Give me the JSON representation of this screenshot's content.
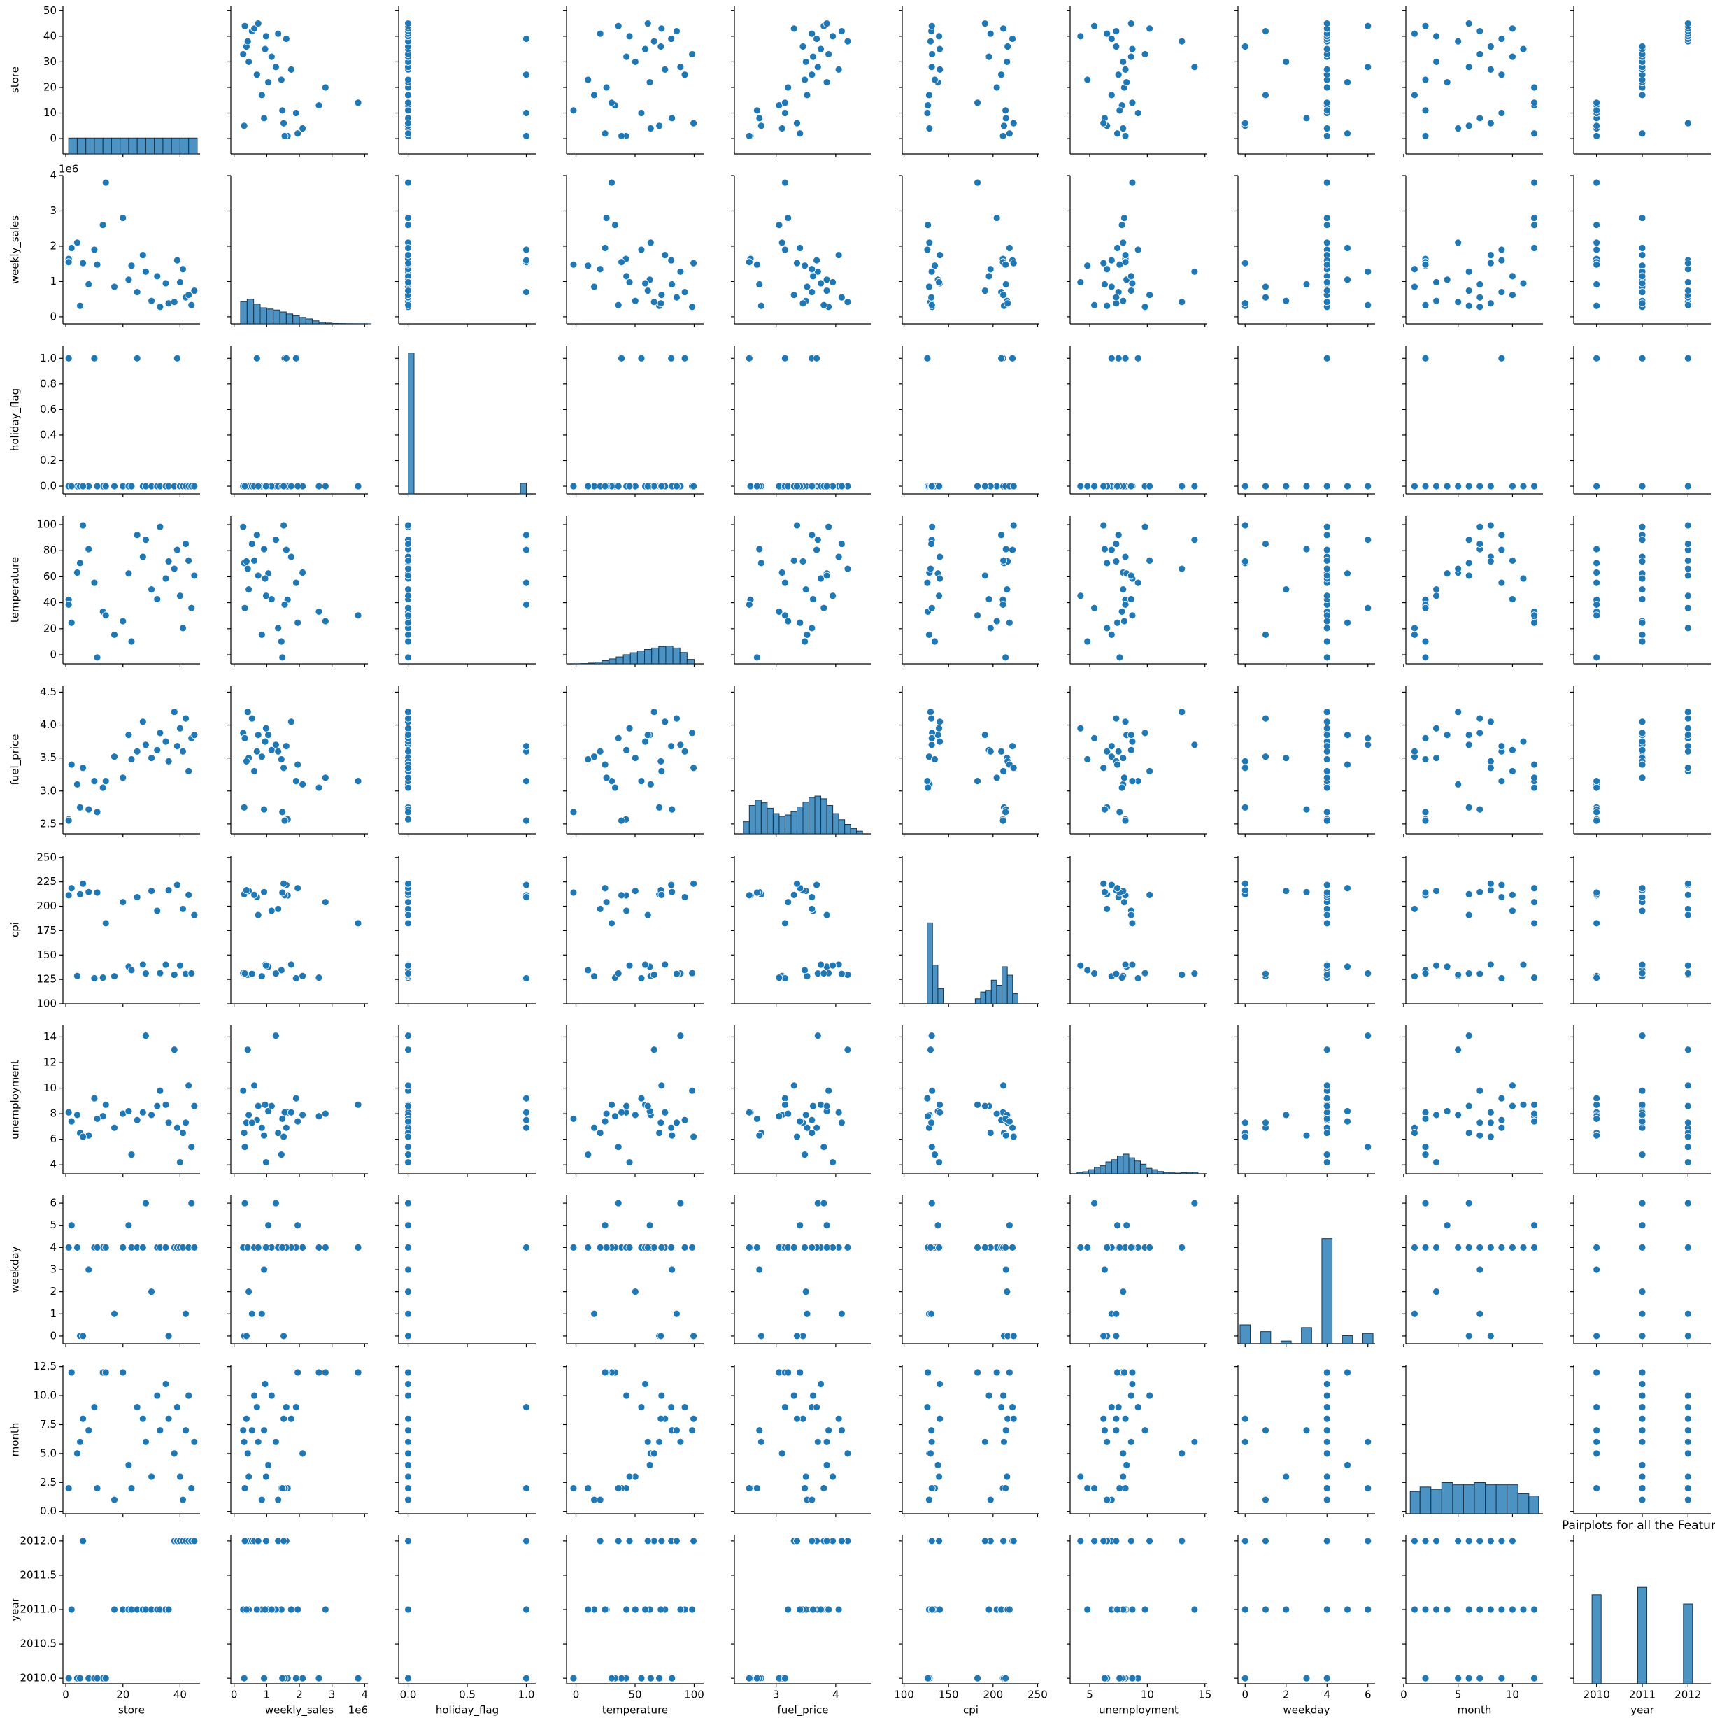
{
  "chart_data": {
    "type": "pairplot",
    "title": "Pairplots for all the Feature",
    "color": "#1f77b4",
    "variables": [
      {
        "name": "store",
        "xlim": [
          -1,
          47
        ],
        "xticks": [
          0,
          20,
          40
        ],
        "ylim": [
          -6,
          52
        ],
        "yticks": [
          0,
          10,
          20,
          30,
          40,
          50
        ],
        "hist": {
          "bins": [
            1,
            4,
            7,
            10,
            13,
            16,
            19,
            22,
            25,
            28,
            31,
            34,
            37,
            40,
            43,
            46
          ],
          "counts": [
            429,
            429,
            429,
            429,
            429,
            429,
            429,
            429,
            429,
            429,
            429,
            429,
            429,
            429,
            429
          ],
          "ylim": [
            0,
            4000
          ]
        }
      },
      {
        "name": "weekly_sales",
        "offset_label": "1e6",
        "xlim": [
          -0.1,
          4.1
        ],
        "xticks": [
          0,
          1,
          2,
          3,
          4
        ],
        "ylim": [
          -0.2,
          4.0
        ],
        "yticks": [
          0,
          1,
          2,
          3,
          4
        ],
        "hist": {
          "bins": [
            0.2,
            0.4,
            0.6,
            0.8,
            1.0,
            1.2,
            1.4,
            1.6,
            1.8,
            2.0,
            2.2,
            2.4,
            2.6,
            2.8,
            3.0,
            3.2,
            3.4,
            3.6,
            3.8,
            4.0,
            4.2
          ],
          "counts": [
            900,
            1000,
            800,
            650,
            600,
            560,
            480,
            400,
            330,
            260,
            200,
            120,
            60,
            30,
            15,
            10,
            6,
            4,
            3,
            2
          ],
          "ylim": [
            0,
            6000
          ]
        }
      },
      {
        "name": "holiday_flag",
        "xlim": [
          -0.08,
          1.08
        ],
        "xticks": [
          {
            "value": 0,
            "label": "0.0"
          },
          0.5,
          {
            "value": 1,
            "label": "1.0"
          }
        ],
        "ylim": [
          -0.06,
          1.1
        ],
        "yticks": [
          {
            "value": 0,
            "label": "0.0"
          },
          0.2,
          0.4,
          0.6,
          0.8,
          {
            "value": 1,
            "label": "1.0"
          }
        ],
        "hist": {
          "bins": [
            0,
            0.05,
            0.1,
            0.15,
            0.2,
            0.25,
            0.3,
            0.35,
            0.4,
            0.45,
            0.5,
            0.55,
            0.6,
            0.65,
            0.7,
            0.75,
            0.8,
            0.85,
            0.9,
            0.95,
            1.0
          ],
          "counts": [
            5985,
            0,
            0,
            0,
            0,
            0,
            0,
            0,
            0,
            0,
            0,
            0,
            0,
            0,
            0,
            0,
            0,
            0,
            0,
            450
          ],
          "ylim": [
            0,
            6300
          ]
        }
      },
      {
        "name": "temperature",
        "xlim": [
          -8,
          108
        ],
        "xticks": [
          0,
          50,
          100
        ],
        "ylim": [
          -7,
          107
        ],
        "yticks": [
          0,
          20,
          40,
          60,
          80,
          100
        ],
        "hist": {
          "bins": [
            -2,
            4,
            10,
            16,
            22,
            28,
            34,
            40,
            46,
            52,
            58,
            64,
            70,
            76,
            82,
            88,
            94,
            100
          ],
          "counts": [
            5,
            12,
            30,
            70,
            130,
            200,
            280,
            370,
            450,
            520,
            580,
            640,
            700,
            720,
            640,
            460,
            180
          ],
          "ylim": [
            0,
            6000
          ]
        }
      },
      {
        "name": "fuel_price",
        "xlim": [
          2.3,
          4.6
        ],
        "xticks": [
          3,
          4
        ],
        "ylim": [
          2.35,
          4.6
        ],
        "yticks": [
          2.5,
          {
            "value": 3,
            "label": "3.0"
          },
          3.5,
          {
            "value": 4,
            "label": "4.0"
          },
          4.5
        ],
        "hist": {
          "bins": [
            2.45,
            2.55,
            2.65,
            2.75,
            2.85,
            2.95,
            3.05,
            3.15,
            3.25,
            3.35,
            3.45,
            3.55,
            3.65,
            3.75,
            3.85,
            3.95,
            4.05,
            4.15,
            4.25,
            4.35,
            4.45
          ],
          "counts": [
            180,
            420,
            500,
            460,
            380,
            300,
            260,
            280,
            330,
            400,
            470,
            540,
            560,
            520,
            420,
            300,
            210,
            140,
            80,
            40
          ],
          "ylim": [
            0,
            2200
          ]
        }
      },
      {
        "name": "cpi",
        "xlim": [
          98,
          252
        ],
        "xticks": [
          100,
          150,
          200,
          250
        ],
        "ylim": [
          100,
          252
        ],
        "yticks": [
          100,
          125,
          150,
          175,
          200,
          225,
          250
        ],
        "hist": {
          "bins": [
            126,
            132,
            138,
            144,
            150,
            156,
            162,
            168,
            174,
            180,
            186,
            192,
            198,
            204,
            210,
            216,
            222,
            228
          ],
          "counts": [
            2400,
            1150,
            450,
            0,
            0,
            0,
            0,
            0,
            0,
            150,
            350,
            400,
            700,
            550,
            1100,
            850,
            300
          ],
          "ylim": [
            0,
            4400
          ]
        }
      },
      {
        "name": "unemployment",
        "xlim": [
          3.3,
          15.2
        ],
        "xticks": [
          5,
          10,
          15
        ],
        "ylim": [
          3.3,
          14.9
        ],
        "yticks": [
          4,
          6,
          8,
          10,
          12,
          14
        ],
        "hist": {
          "bins": [
            3.9,
            4.4,
            4.9,
            5.4,
            5.9,
            6.4,
            6.9,
            7.4,
            7.9,
            8.4,
            8.9,
            9.4,
            9.9,
            10.4,
            10.9,
            11.4,
            11.9,
            12.4,
            12.9,
            13.4,
            13.9,
            14.4
          ],
          "counts": [
            60,
            90,
            180,
            280,
            350,
            520,
            620,
            780,
            860,
            700,
            560,
            420,
            240,
            180,
            100,
            60,
            40,
            30,
            50,
            40,
            60
          ],
          "ylim": [
            0,
            6500
          ]
        }
      },
      {
        "name": "weekday",
        "xlim": [
          -0.35,
          6.35
        ],
        "xticks": [
          0,
          2,
          4,
          6
        ],
        "ylim": [
          -0.35,
          6.35
        ],
        "yticks": [
          0,
          1,
          2,
          3,
          4,
          5,
          6
        ],
        "hist": {
          "bins": [
            -0.25,
            0.25,
            0.75,
            1.25,
            1.75,
            2.25,
            2.75,
            3.25,
            3.75,
            4.25,
            4.75,
            5.25,
            5.75,
            6.25
          ],
          "counts": [
            700,
            0,
            450,
            0,
            100,
            0,
            600,
            0,
            3900,
            0,
            300,
            0,
            385
          ],
          "ylim": [
            0,
            5500
          ]
        }
      },
      {
        "name": "month",
        "xlim": [
          0.2,
          12.8
        ],
        "xticks": [
          0,
          5,
          10
        ],
        "ylim": [
          -0.2,
          12.6
        ],
        "yticks": [
          {
            "value": 0,
            "label": "0.0"
          },
          2.5,
          {
            "value": 5,
            "label": "5.0"
          },
          7.5,
          {
            "value": 10,
            "label": "10.0"
          },
          12.5
        ],
        "hist": {
          "bins": [
            0.6,
            1.5,
            2.5,
            3.5,
            4.5,
            5.5,
            6.5,
            7.5,
            8.5,
            9.5,
            10.5,
            11.5,
            12.4
          ],
          "counts": [
            450,
            540,
            495,
            630,
            585,
            585,
            630,
            585,
            585,
            585,
            405,
            360
          ],
          "ylim": [
            0,
            3000
          ]
        }
      },
      {
        "name": "year",
        "xlim": [
          2009.5,
          2012.5
        ],
        "xticks": [
          2010,
          2011,
          2012
        ],
        "ylim": [
          2009.92,
          2012.08
        ],
        "yticks": [
          {
            "value": 2010,
            "label": "2010.0"
          },
          2010.5,
          {
            "value": 2011,
            "label": "2011.0"
          },
          2011.5,
          {
            "value": 2012,
            "label": "2012.0"
          }
        ],
        "hist": {
          "bins": [
            2009.9,
            2010.1,
            2010.3,
            2010.5,
            2010.7,
            2010.9,
            2011.1,
            2011.3,
            2011.5,
            2011.7,
            2011.9,
            2012.1
          ],
          "counts": [
            2160,
            0,
            0,
            0,
            0,
            2340,
            0,
            0,
            0,
            0,
            1935
          ],
          "ylim": [
            0,
            3600
          ]
        }
      }
    ],
    "rows": [
      [
        1,
        1.64,
        0,
        42.3,
        2.57,
        211.1,
        8.1,
        4,
        2,
        2010
      ],
      [
        1,
        1.55,
        1,
        38.5,
        2.55,
        211.2,
        8.1,
        4,
        2,
        2010
      ],
      [
        4,
        2.1,
        0,
        63.2,
        3.1,
        128.5,
        7.9,
        4,
        5,
        2010
      ],
      [
        5,
        0.31,
        0,
        70.5,
        2.75,
        212.3,
        6.5,
        0,
        6,
        2010
      ],
      [
        8,
        0.92,
        0,
        81.2,
        2.72,
        214.5,
        6.3,
        3,
        7,
        2010
      ],
      [
        10,
        1.9,
        1,
        55.3,
        3.15,
        126.2,
        9.2,
        4,
        9,
        2010
      ],
      [
        13,
        2.6,
        0,
        33.1,
        3.05,
        126.8,
        7.8,
        4,
        12,
        2010
      ],
      [
        14,
        3.8,
        0,
        30.2,
        3.15,
        182.5,
        8.7,
        4,
        12,
        2010
      ],
      [
        17,
        0.85,
        0,
        15.4,
        3.52,
        128.2,
        6.9,
        1,
        1,
        2011
      ],
      [
        20,
        2.8,
        0,
        25.8,
        3.2,
        204.2,
        8.0,
        4,
        12,
        2011
      ],
      [
        22,
        1.05,
        0,
        62.5,
        3.85,
        138.1,
        8.2,
        5,
        4,
        2011
      ],
      [
        23,
        1.45,
        0,
        10.2,
        3.48,
        134.5,
        4.8,
        4,
        2,
        2011
      ],
      [
        25,
        0.7,
        1,
        92.1,
        3.6,
        209.3,
        7.5,
        4,
        9,
        2011
      ],
      [
        27,
        1.75,
        0,
        75.3,
        4.05,
        140.2,
        8.1,
        4,
        8,
        2011
      ],
      [
        28,
        1.28,
        0,
        88.4,
        3.7,
        131.1,
        14.1,
        6,
        6,
        2011
      ],
      [
        30,
        0.45,
        0,
        50.2,
        3.5,
        215.7,
        7.9,
        2,
        3,
        2011
      ],
      [
        32,
        1.15,
        0,
        42.7,
        3.62,
        195.4,
        8.6,
        4,
        10,
        2011
      ],
      [
        33,
        0.28,
        0,
        98.3,
        3.88,
        131.5,
        9.8,
        4,
        7,
        2011
      ],
      [
        35,
        0.95,
        0,
        58.6,
        3.75,
        140.1,
        8.7,
        4,
        11,
        2011
      ],
      [
        36,
        0.38,
        0,
        71.8,
        3.45,
        216.4,
        7.3,
        0,
        8,
        2011
      ],
      [
        38,
        0.42,
        0,
        66.1,
        4.2,
        129.8,
        13.0,
        4,
        5,
        2012
      ],
      [
        39,
        1.6,
        1,
        80.6,
        3.68,
        221.8,
        6.9,
        4,
        9,
        2012
      ],
      [
        40,
        0.98,
        0,
        45.3,
        3.95,
        139.3,
        4.2,
        4,
        3,
        2012
      ],
      [
        41,
        1.35,
        0,
        20.5,
        3.6,
        197.2,
        6.5,
        4,
        1,
        2012
      ],
      [
        42,
        0.55,
        0,
        85.2,
        4.1,
        130.7,
        7.3,
        1,
        7,
        2012
      ],
      [
        43,
        0.62,
        0,
        72.4,
        3.3,
        211.6,
        10.2,
        4,
        10,
        2012
      ],
      [
        44,
        0.33,
        0,
        35.9,
        3.8,
        131.2,
        5.4,
        6,
        2,
        2012
      ],
      [
        45,
        0.74,
        0,
        60.8,
        3.85,
        191.0,
        8.6,
        4,
        6,
        2012
      ],
      [
        11,
        1.48,
        0,
        -2.1,
        2.68,
        214.0,
        7.6,
        4,
        2,
        2010
      ],
      [
        2,
        1.95,
        0,
        24.6,
        3.4,
        218.5,
        7.4,
        5,
        12,
        2011
      ],
      [
        6,
        1.52,
        0,
        99.5,
        3.35,
        223.1,
        6.2,
        0,
        8,
        2012
      ]
    ]
  }
}
